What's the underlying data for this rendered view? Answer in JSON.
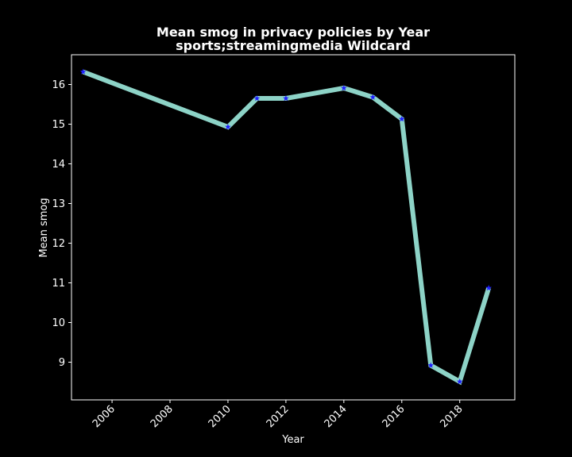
{
  "chart_data": {
    "type": "line",
    "title": "Mean smog in privacy policies by Year",
    "subtitle": "sports;streamingmedia Wildcard",
    "xlabel": "Year",
    "ylabel": "Mean smog",
    "xlim": [
      2004.6,
      2019.9
    ],
    "ylim": [
      8.05,
      16.75
    ],
    "x_ticks": [
      "2006",
      "2008",
      "2010",
      "2012",
      "2014",
      "2016",
      "2018"
    ],
    "y_ticks": [
      "9",
      "10",
      "11",
      "12",
      "13",
      "14",
      "15",
      "16"
    ],
    "grid": false,
    "series": [
      {
        "x": [
          2005,
          2010,
          2011,
          2012,
          2014,
          2015,
          2016,
          2017,
          2018,
          2019
        ],
        "values": [
          16.32,
          14.93,
          15.65,
          15.65,
          15.91,
          15.68,
          15.13,
          8.92,
          8.51,
          10.87
        ]
      }
    ],
    "colors": {
      "background": "#000000",
      "line": "#8dd3c7",
      "marker": "#1f1fff",
      "text": "#ffffff",
      "axes": "#ffffff"
    }
  }
}
